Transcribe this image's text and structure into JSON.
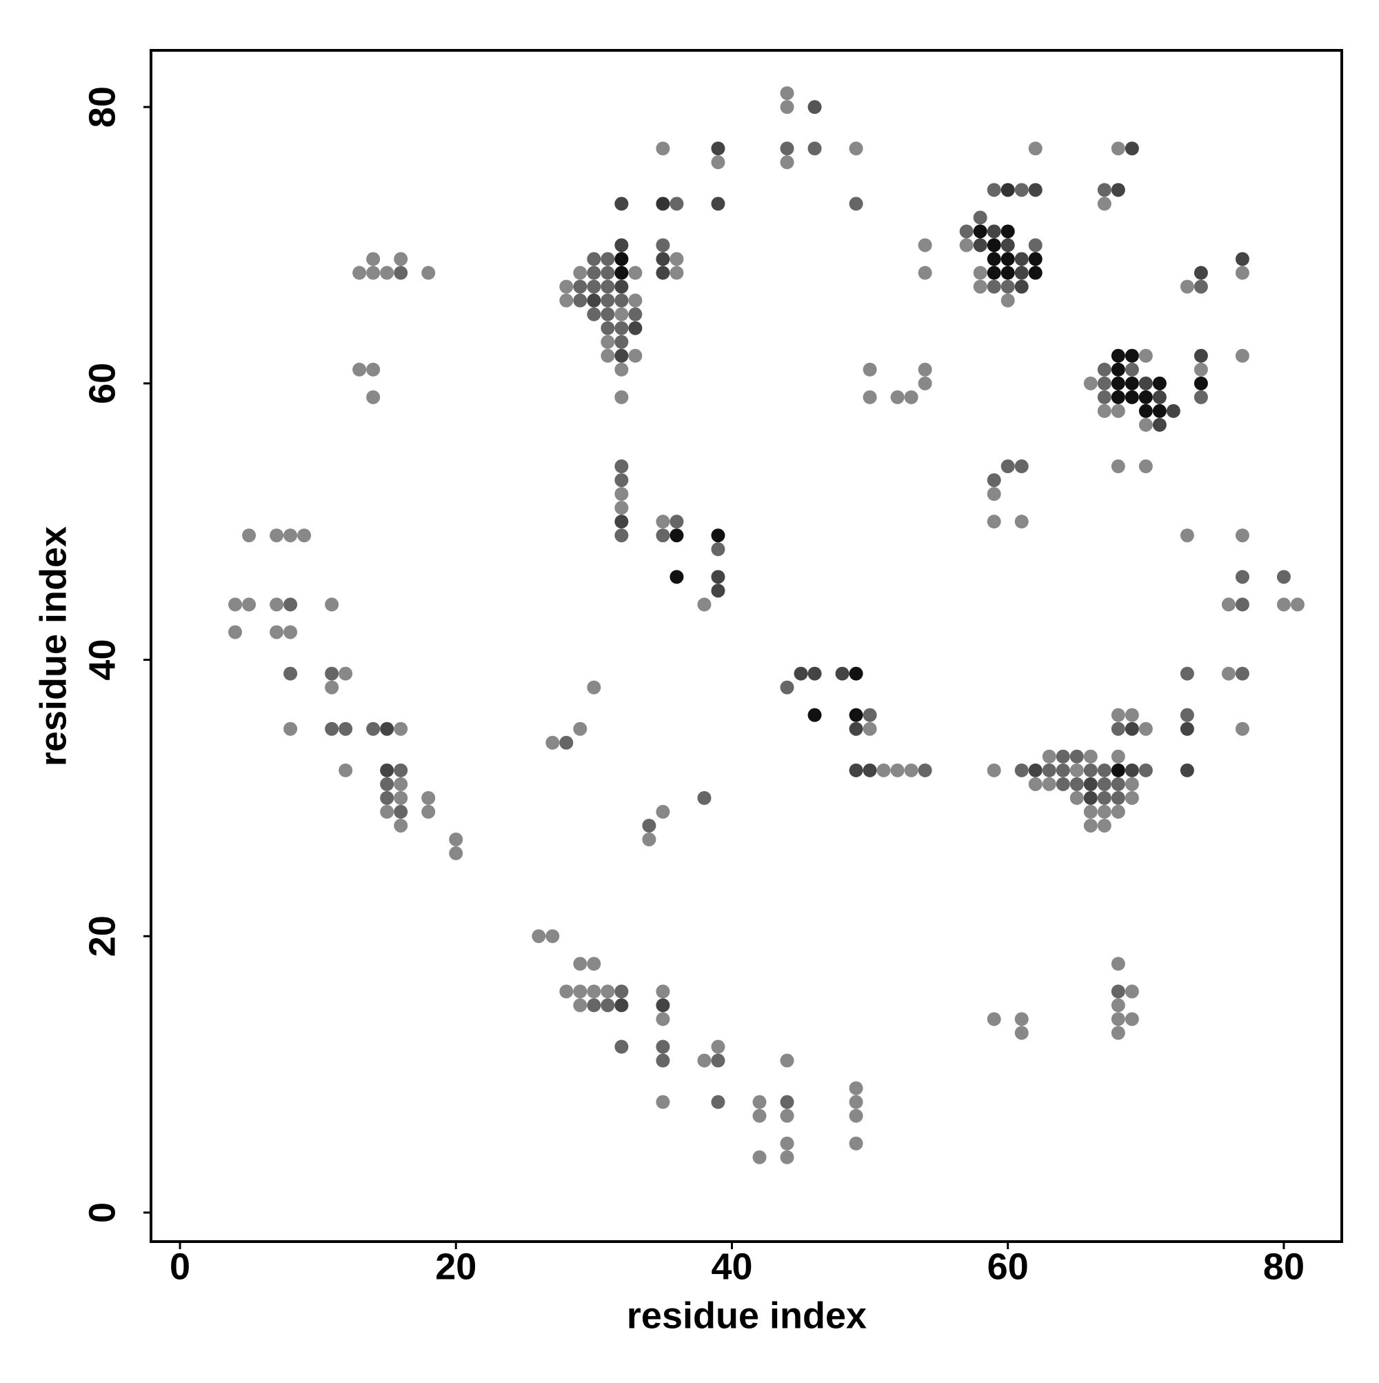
{
  "chart_data": {
    "type": "scatter",
    "xlabel": "residue index",
    "ylabel": "residue index",
    "xlim": [
      -2.1,
      84.2
    ],
    "ylim": [
      -2.1,
      84.1
    ],
    "xticks": [
      0,
      20,
      40,
      60,
      80
    ],
    "yticks": [
      0,
      20,
      40,
      60,
      80
    ],
    "x": [
      44,
      44,
      46,
      44,
      44,
      46,
      49,
      49,
      35,
      39,
      39,
      39,
      32,
      35,
      36,
      62,
      68,
      69,
      59,
      60,
      61,
      62,
      67,
      68,
      67,
      58,
      57,
      58,
      59,
      60,
      57,
      58,
      59,
      60,
      62,
      59,
      60,
      61,
      62,
      58,
      59,
      60,
      61,
      62,
      58,
      59,
      60,
      61,
      60,
      54,
      54,
      32,
      35,
      30,
      31,
      32,
      35,
      36,
      29,
      30,
      31,
      32,
      33,
      35,
      36,
      28,
      29,
      30,
      31,
      32,
      28,
      29,
      30,
      31,
      32,
      33,
      30,
      31,
      32,
      33,
      31,
      32,
      33,
      31,
      32,
      31,
      32,
      33,
      32,
      32,
      13,
      14,
      15,
      16,
      18,
      14,
      16,
      13,
      14,
      14,
      50,
      50,
      52,
      53,
      54,
      54,
      68,
      69,
      70,
      67,
      68,
      69,
      66,
      67,
      68,
      69,
      70,
      71,
      67,
      68,
      69,
      70,
      71,
      67,
      68,
      70,
      71,
      72,
      70,
      71,
      74,
      73,
      74,
      77,
      77,
      77,
      74,
      74,
      74,
      74,
      68,
      70,
      32,
      32,
      32,
      32,
      32,
      32,
      35,
      36,
      35,
      36,
      39,
      39,
      36,
      39,
      39,
      38,
      59,
      59,
      60,
      61,
      59,
      61,
      73,
      77,
      77,
      80,
      76,
      77,
      80,
      81,
      73,
      76,
      77,
      73,
      73,
      77,
      73,
      5,
      7,
      8,
      9,
      4,
      5,
      7,
      8,
      4,
      7,
      8,
      11,
      8,
      11,
      12,
      11,
      8,
      11,
      12,
      14,
      15,
      16,
      12,
      15,
      16,
      15,
      16,
      15,
      16,
      15,
      16,
      16,
      18,
      18,
      20,
      20,
      30,
      27,
      28,
      29,
      38,
      35,
      34,
      34,
      44,
      45,
      46,
      48,
      49,
      46,
      49,
      50,
      49,
      50,
      49,
      50,
      51,
      52,
      53,
      54,
      68,
      69,
      68,
      69,
      70,
      63,
      64,
      65,
      66,
      68,
      59,
      61,
      62,
      63,
      64,
      65,
      66,
      67,
      68,
      69,
      70,
      62,
      63,
      64,
      65,
      66,
      67,
      68,
      69,
      65,
      66,
      67,
      68,
      69,
      66,
      67,
      68,
      66,
      67,
      26,
      27,
      29,
      30,
      28,
      29,
      30,
      31,
      32,
      35,
      29,
      30,
      31,
      32,
      35,
      35,
      32,
      35,
      39,
      35,
      38,
      39,
      44,
      35,
      39,
      42,
      44,
      49,
      49,
      42,
      44,
      49,
      44,
      49,
      42,
      44,
      59,
      61,
      61,
      68,
      68,
      69,
      68,
      68,
      69,
      68
    ],
    "y": [
      81,
      80,
      80,
      77,
      76,
      77,
      77,
      73,
      77,
      77,
      76,
      73,
      73,
      73,
      73,
      77,
      77,
      77,
      74,
      74,
      74,
      74,
      74,
      74,
      73,
      72,
      71,
      71,
      71,
      71,
      70,
      70,
      70,
      70,
      70,
      69,
      69,
      69,
      69,
      68,
      68,
      68,
      68,
      68,
      67,
      67,
      67,
      67,
      66,
      70,
      68,
      70,
      70,
      69,
      69,
      69,
      69,
      69,
      68,
      68,
      68,
      68,
      68,
      68,
      68,
      67,
      67,
      67,
      67,
      67,
      66,
      66,
      66,
      66,
      66,
      66,
      65,
      65,
      65,
      65,
      64,
      64,
      64,
      63,
      63,
      62,
      62,
      62,
      61,
      59,
      68,
      68,
      68,
      68,
      68,
      69,
      69,
      61,
      61,
      59,
      61,
      59,
      59,
      59,
      61,
      60,
      62,
      62,
      62,
      61,
      61,
      61,
      60,
      60,
      60,
      60,
      60,
      60,
      59,
      59,
      59,
      59,
      59,
      58,
      58,
      58,
      58,
      58,
      57,
      57,
      68,
      67,
      67,
      69,
      68,
      62,
      62,
      61,
      60,
      59,
      54,
      54,
      54,
      53,
      52,
      51,
      50,
      49,
      50,
      50,
      49,
      49,
      49,
      48,
      46,
      46,
      45,
      44,
      53,
      52,
      54,
      54,
      50,
      50,
      49,
      49,
      46,
      46,
      44,
      44,
      44,
      44,
      39,
      39,
      39,
      36,
      35,
      35,
      32,
      49,
      49,
      49,
      49,
      44,
      44,
      44,
      44,
      42,
      42,
      42,
      44,
      39,
      39,
      39,
      38,
      35,
      35,
      35,
      35,
      35,
      35,
      32,
      32,
      32,
      31,
      31,
      30,
      30,
      29,
      29,
      28,
      30,
      29,
      27,
      26,
      38,
      34,
      34,
      35,
      30,
      29,
      28,
      27,
      38,
      39,
      39,
      39,
      39,
      36,
      36,
      36,
      35,
      35,
      32,
      32,
      32,
      32,
      32,
      32,
      36,
      36,
      35,
      35,
      35,
      33,
      33,
      33,
      33,
      33,
      32,
      32,
      32,
      32,
      32,
      32,
      32,
      32,
      32,
      32,
      32,
      31,
      31,
      31,
      31,
      31,
      31,
      31,
      31,
      30,
      30,
      30,
      30,
      30,
      29,
      29,
      29,
      28,
      28,
      20,
      20,
      18,
      18,
      16,
      16,
      16,
      16,
      16,
      16,
      15,
      15,
      15,
      15,
      15,
      14,
      12,
      12,
      12,
      11,
      11,
      11,
      11,
      8,
      8,
      8,
      8,
      9,
      8,
      7,
      7,
      7,
      5,
      5,
      4,
      4,
      14,
      14,
      13,
      18,
      16,
      16,
      15,
      14,
      14,
      13
    ],
    "colors": [
      "#888888",
      "#888888",
      "#555555",
      "#666666",
      "#888888",
      "#666666",
      "#888888",
      "#666666",
      "#888888",
      "#444444",
      "#888888",
      "#444444",
      "#444444",
      "#333333",
      "#666666",
      "#888888",
      "#888888",
      "#444444",
      "#666666",
      "#333333",
      "#666666",
      "#444444",
      "#666666",
      "#444444",
      "#888888",
      "#666666",
      "#666666",
      "#111111",
      "#444444",
      "#111111",
      "#888888",
      "#444444",
      "#111111",
      "#444444",
      "#666666",
      "#111111",
      "#111111",
      "#444444",
      "#111111",
      "#888888",
      "#111111",
      "#111111",
      "#444444",
      "#111111",
      "#888888",
      "#666666",
      "#666666",
      "#444444",
      "#888888",
      "#888888",
      "#888888",
      "#444444",
      "#666666",
      "#666666",
      "#666666",
      "#111111",
      "#444444",
      "#888888",
      "#888888",
      "#666666",
      "#666666",
      "#111111",
      "#888888",
      "#444444",
      "#888888",
      "#888888",
      "#666666",
      "#666666",
      "#666666",
      "#444444",
      "#888888",
      "#666666",
      "#444444",
      "#666666",
      "#666666",
      "#888888",
      "#666666",
      "#666666",
      "#888888",
      "#666666",
      "#666666",
      "#666666",
      "#444444",
      "#888888",
      "#666666",
      "#888888",
      "#444444",
      "#888888",
      "#888888",
      "#888888",
      "#888888",
      "#888888",
      "#888888",
      "#666666",
      "#888888",
      "#888888",
      "#888888",
      "#888888",
      "#888888",
      "#888888",
      "#888888",
      "#888888",
      "#888888",
      "#888888",
      "#888888",
      "#888888",
      "#111111",
      "#111111",
      "#888888",
      "#666666",
      "#111111",
      "#666666",
      "#888888",
      "#666666",
      "#111111",
      "#111111",
      "#444444",
      "#111111",
      "#666666",
      "#111111",
      "#111111",
      "#111111",
      "#444444",
      "#888888",
      "#888888",
      "#111111",
      "#111111",
      "#444444",
      "#888888",
      "#444444",
      "#444444",
      "#888888",
      "#666666",
      "#444444",
      "#888888",
      "#888888",
      "#444444",
      "#888888",
      "#111111",
      "#666666",
      "#888888",
      "#888888",
      "#666666",
      "#666666",
      "#888888",
      "#888888",
      "#444444",
      "#666666",
      "#888888",
      "#666666",
      "#666666",
      "#111111",
      "#111111",
      "#666666",
      "#111111",
      "#444444",
      "#444444",
      "#888888",
      "#666666",
      "#888888",
      "#666666",
      "#666666",
      "#888888",
      "#888888",
      "#888888",
      "#888888",
      "#666666",
      "#666666",
      "#888888",
      "#666666",
      "#888888",
      "#888888",
      "#666666",
      "#888888",
      "#666666",
      "#666666",
      "#444444",
      "#888888",
      "#444444",
      "#888888",
      "#888888",
      "#888888",
      "#888888",
      "#888888",
      "#888888",
      "#888888",
      "#666666",
      "#888888",
      "#888888",
      "#888888",
      "#888888",
      "#666666",
      "#666666",
      "#888888",
      "#888888",
      "#888888",
      "#666666",
      "#666666",
      "#666666",
      "#444444",
      "#888888",
      "#888888",
      "#444444",
      "#666666",
      "#666666",
      "#888888",
      "#666666",
      "#888888",
      "#888888",
      "#666666",
      "#888888",
      "#888888",
      "#888888",
      "#888888",
      "#888888",
      "#888888",
      "#888888",
      "#666666",
      "#888888",
      "#666666",
      "#888888",
      "#666666",
      "#888888",
      "#666666",
      "#444444",
      "#444444",
      "#444444",
      "#111111",
      "#111111",
      "#111111",
      "#666666",
      "#444444",
      "#888888",
      "#444444",
      "#444444",
      "#888888",
      "#888888",
      "#888888",
      "#666666",
      "#888888",
      "#888888",
      "#666666",
      "#444444",
      "#888888",
      "#888888",
      "#666666",
      "#666666",
      "#888888",
      "#888888",
      "#888888",
      "#666666",
      "#444444",
      "#666666",
      "#666666",
      "#888888",
      "#666666",
      "#666666",
      "#111111",
      "#444444",
      "#666666",
      "#888888",
      "#888888",
      "#666666",
      "#666666",
      "#444444",
      "#666666",
      "#666666",
      "#888888",
      "#888888",
      "#444444",
      "#666666",
      "#666666",
      "#888888",
      "#888888",
      "#888888",
      "#888888",
      "#888888",
      "#888888",
      "#888888",
      "#888888",
      "#888888",
      "#888888",
      "#888888",
      "#888888",
      "#888888",
      "#888888",
      "#666666",
      "#888888",
      "#888888",
      "#666666",
      "#666666",
      "#444444",
      "#444444",
      "#888888",
      "#666666",
      "#666666",
      "#888888",
      "#666666",
      "#888888",
      "#666666",
      "#888888",
      "#888888",
      "#666666",
      "#888888",
      "#666666",
      "#888888",
      "#888888",
      "#888888",
      "#888888",
      "#888888",
      "#888888",
      "#888888",
      "#888888",
      "#888888",
      "#888888",
      "#888888",
      "#888888",
      "#888888",
      "#666666",
      "#888888",
      "#888888",
      "#888888",
      "#888888",
      "#888888"
    ]
  }
}
